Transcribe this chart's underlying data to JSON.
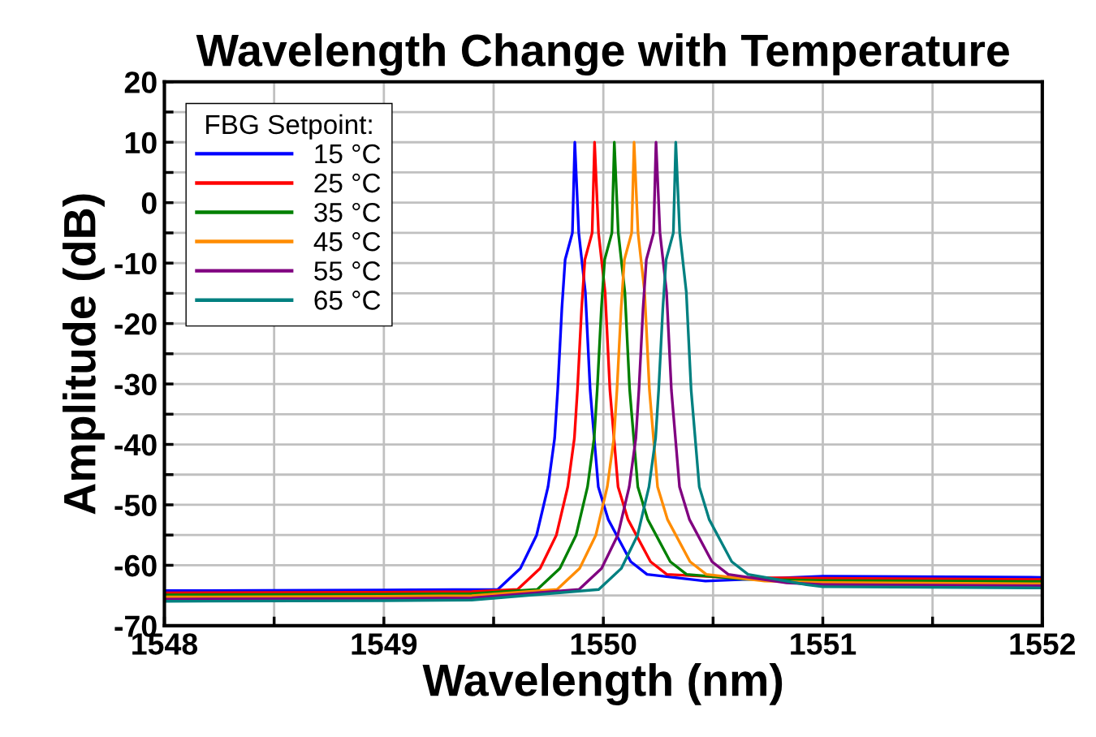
{
  "chart_data": {
    "type": "line",
    "title": "Wavelength Change with Temperature",
    "xlabel": "Wavelength (nm)",
    "ylabel": "Amplitude (dB)",
    "legend_title": "FBG Setpoint:",
    "legend": "top left",
    "grid": true,
    "line_style": "solid",
    "marker": "none",
    "xlim": [
      1548,
      1552
    ],
    "ylim": [
      -70,
      20
    ],
    "xticks": [
      1548,
      {
        "value": 1548.5,
        "label": null
      },
      1549,
      {
        "value": 1549.5,
        "label": null
      },
      1550,
      {
        "value": 1550.5,
        "label": null
      },
      1551,
      {
        "value": 1551.5,
        "label": null
      },
      1552
    ],
    "yticks": [
      -70,
      {
        "value": -65,
        "label": null
      },
      -60,
      {
        "value": -55,
        "label": null
      },
      -50,
      {
        "value": -45,
        "label": null
      },
      -40,
      {
        "value": -35,
        "label": null
      },
      -30,
      {
        "value": -25,
        "label": null
      },
      -20,
      {
        "value": -15,
        "label": null
      },
      -10,
      {
        "value": -5,
        "label": null
      },
      0,
      {
        "value": 5,
        "label": null
      },
      10,
      {
        "value": 15,
        "label": null
      },
      20
    ],
    "series": [
      {
        "name": "15 °C",
        "color": "#0000ff",
        "x": [
          1548,
          1549,
          1549.519,
          1549.622,
          1549.696,
          1549.748,
          1549.778,
          1549.792,
          1549.811,
          1549.826,
          1549.859,
          1549.87,
          1549.888,
          1549.918,
          1549.94,
          1549.977,
          1550.022,
          1550.125,
          1550.199,
          1550.465,
          1551,
          1552
        ],
        "values": [
          -64.2,
          -64.1,
          -64,
          -60.5,
          -55,
          -47,
          -39,
          -31,
          -17.5,
          -9.4,
          -5,
          10,
          -5,
          -14.8,
          -31,
          -47,
          -52.4,
          -59.4,
          -61.5,
          -62.6,
          -61.8,
          -62
        ]
      },
      {
        "name": "25 °C",
        "color": "#ff0000",
        "x": [
          1548,
          1549,
          1549.4,
          1549.609,
          1549.712,
          1549.786,
          1549.838,
          1549.868,
          1549.882,
          1549.901,
          1549.916,
          1549.949,
          1549.96,
          1549.978,
          1550.008,
          1550.03,
          1550.067,
          1550.112,
          1550.215,
          1550.289,
          1550.555,
          1551,
          1552
        ],
        "values": [
          -64.55,
          -64.45,
          -64.35,
          -64,
          -60.5,
          -55,
          -47,
          -39,
          -31,
          -17.5,
          -9.4,
          -5,
          10,
          -5,
          -14.8,
          -31,
          -47,
          -52.4,
          -59.4,
          -61.5,
          -62,
          -62.15,
          -62.35
        ]
      },
      {
        "name": "35 °C",
        "color": "#008000",
        "x": [
          1548,
          1549,
          1549.4,
          1549.699,
          1549.802,
          1549.876,
          1549.928,
          1549.958,
          1549.972,
          1549.991,
          1550.006,
          1550.039,
          1550.05,
          1550.068,
          1550.098,
          1550.12,
          1550.157,
          1550.202,
          1550.305,
          1550.379,
          1550.645,
          1551,
          1552
        ],
        "values": [
          -64.9,
          -64.8,
          -64.7,
          -64,
          -60.5,
          -55,
          -47,
          -39,
          -31,
          -17.5,
          -9.4,
          -5,
          10,
          -5,
          -14.8,
          -31,
          -47,
          -52.4,
          -59.4,
          -61.5,
          -62.3,
          -62.5,
          -62.7
        ]
      },
      {
        "name": "45 °C",
        "color": "#ff8c00",
        "x": [
          1548,
          1549,
          1549.4,
          1549.789,
          1549.892,
          1549.966,
          1550.018,
          1550.048,
          1550.062,
          1550.081,
          1550.096,
          1550.129,
          1550.14,
          1550.158,
          1550.188,
          1550.21,
          1550.247,
          1550.292,
          1550.395,
          1550.469,
          1550.735,
          1551,
          1552
        ],
        "values": [
          -65.25,
          -65.15,
          -65.05,
          -64,
          -60.5,
          -55,
          -47,
          -39,
          -31,
          -17.5,
          -9.4,
          -5,
          10,
          -5,
          -14.8,
          -31,
          -47,
          -52.4,
          -59.4,
          -61.5,
          -62.6,
          -62.85,
          -63.05
        ]
      },
      {
        "name": "55 °C",
        "color": "#800080",
        "x": [
          1548,
          1549,
          1549.4,
          1549.889,
          1549.992,
          1550.066,
          1550.118,
          1550.148,
          1550.162,
          1550.181,
          1550.196,
          1550.229,
          1550.24,
          1550.258,
          1550.288,
          1550.31,
          1550.347,
          1550.392,
          1550.495,
          1550.569,
          1550.835,
          1551,
          1552
        ],
        "values": [
          -65.6,
          -65.5,
          -65.4,
          -64,
          -60.5,
          -55,
          -47,
          -39,
          -31,
          -17.5,
          -9.4,
          -5,
          10,
          -5,
          -14.8,
          -31,
          -47,
          -52.4,
          -59.4,
          -61.5,
          -62.9,
          -63.2,
          -63.4
        ]
      },
      {
        "name": "65 °C",
        "color": "#008080",
        "x": [
          1548,
          1549,
          1549.4,
          1549.979,
          1550.082,
          1550.156,
          1550.208,
          1550.238,
          1550.252,
          1550.271,
          1550.286,
          1550.319,
          1550.33,
          1550.348,
          1550.378,
          1550.4,
          1550.437,
          1550.482,
          1550.585,
          1550.659,
          1550.925,
          1551,
          1552
        ],
        "values": [
          -65.95,
          -65.85,
          -65.75,
          -64,
          -60.5,
          -55,
          -47,
          -39,
          -31,
          -17.5,
          -9.4,
          -5,
          10,
          -5,
          -14.8,
          -31,
          -47,
          -52.4,
          -59.4,
          -61.5,
          -63.2,
          -63.55,
          -63.75
        ]
      }
    ]
  }
}
